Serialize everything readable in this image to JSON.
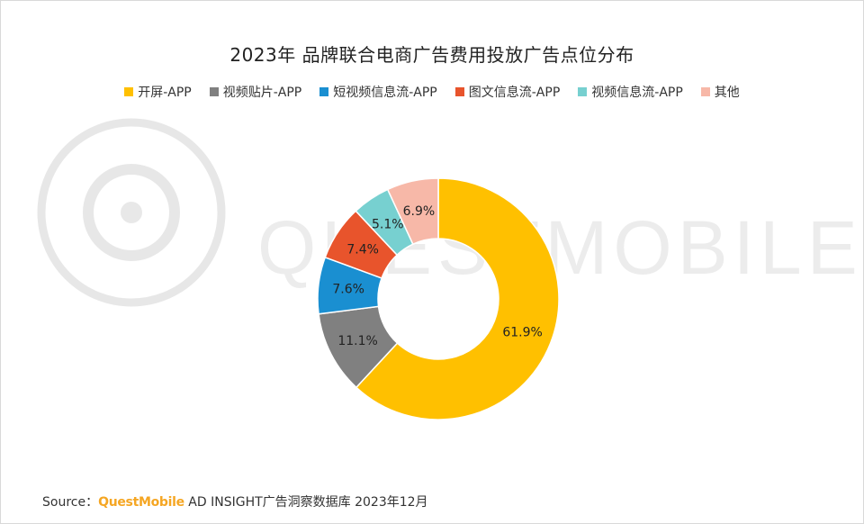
{
  "chart_data": {
    "type": "pie",
    "title": "2023年 品牌联合电商广告费用投放广告点位分布",
    "categories": [
      "开屏-APP",
      "视频贴片-APP",
      "短视频信息流-APP",
      "图文信息流-APP",
      "视频信息流-APP",
      "其他"
    ],
    "values": [
      61.9,
      11.1,
      7.6,
      7.4,
      5.1,
      6.9
    ],
    "labels": [
      "61.9%",
      "11.1%",
      "7.6%",
      "7.4%",
      "5.1%",
      "6.9%"
    ],
    "colors": [
      "#ffc000",
      "#808080",
      "#1a8fd1",
      "#e8542c",
      "#77d0d0",
      "#f7b8a8"
    ],
    "legend_position": "top"
  },
  "watermark": {
    "text": "QUESTMOBILE"
  },
  "source": {
    "prefix": "Source：",
    "brand": "QuestMobile",
    "suffix": " AD INSIGHT广告洞察数据库 2023年12月"
  }
}
